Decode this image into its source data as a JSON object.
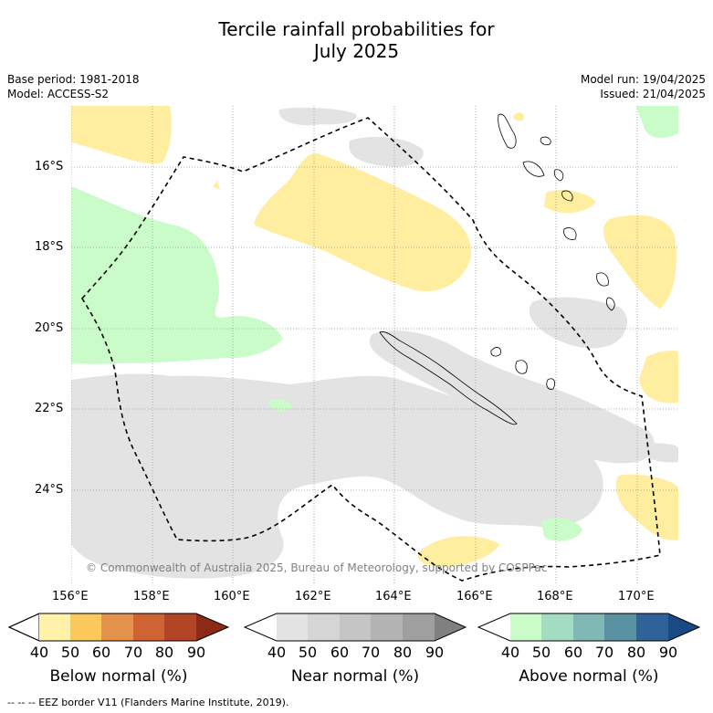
{
  "title_line1": "Tercile rainfall probabilities for",
  "title_line2": "July 2025",
  "base_period": "Base period: 1981-2018",
  "model": "Model: ACCESS-S2",
  "model_run": "Model run: 19/04/2025",
  "issued": "Issued: 21/04/2025",
  "copyright": "© Commonwealth of Australia 2025, Bureau of Meteorology, supported by COSPPac",
  "lon_labels": [
    "156°E",
    "158°E",
    "160°E",
    "162°E",
    "164°E",
    "166°E",
    "168°E",
    "170°E"
  ],
  "lat_labels": [
    "16°S",
    "18°S",
    "20°S",
    "22°S",
    "24°S"
  ],
  "colorbars": [
    {
      "label": "Below normal (%)",
      "ticks": [
        "40",
        "50",
        "60",
        "70",
        "80",
        "90"
      ],
      "colors": [
        "#fff1a8",
        "#fcc85c",
        "#e3914b",
        "#cf6334",
        "#b24525",
        "#8b2a16"
      ]
    },
    {
      "label": "Near normal (%)",
      "ticks": [
        "40",
        "50",
        "60",
        "70",
        "80",
        "90"
      ],
      "colors": [
        "#e3e3e3",
        "#d5d5d5",
        "#c5c5c5",
        "#b3b3b3",
        "#9f9f9f",
        "#808080"
      ]
    },
    {
      "label": "Above normal (%)",
      "ticks": [
        "40",
        "50",
        "60",
        "70",
        "80",
        "90"
      ],
      "colors": [
        "#c9fcc9",
        "#a3dcc3",
        "#7fb8b4",
        "#5a91a3",
        "#2e6299",
        "#1a4a85"
      ]
    }
  ],
  "footer": "--  --  -- EEZ border V11 (Flanders Marine Institute, 2019).",
  "colors": {
    "below": "#ffeea0",
    "near": "#e3e3e3",
    "above": "#c9fcc9",
    "grid": "#888888"
  }
}
